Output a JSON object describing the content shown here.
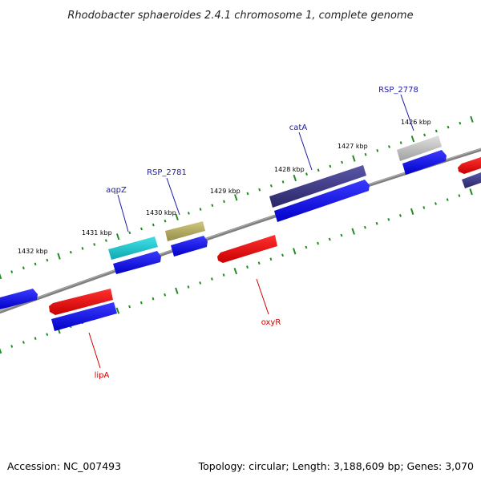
{
  "title": "Rhodobacter sphaeroides 2.4.1 chromosome 1, complete genome",
  "footer": {
    "accession": "Accession: NC_007493",
    "topology": "Topology: circular; Length: 3,188,609 bp; Genes: 3,070"
  },
  "scale_labels": [
    "1432 kbp",
    "1431 kbp",
    "1430 kbp",
    "1429 kbp",
    "1428 kbp",
    "1427 kbp",
    "1426 kbp"
  ],
  "gene_labels": {
    "aqpZ": "aqpZ",
    "RSP_2781": "RSP_2781",
    "catA": "catA",
    "RSP_2778": "RSP_2778",
    "oxyR": "oxyR",
    "lipA": "lipA"
  },
  "colors": {
    "backbone": "#808080",
    "forward_tick": "#228B22",
    "cds": "#0000ee",
    "gene_red": "#ee0000",
    "aqpZ": "#20c0c8",
    "RSP_2781": "#b0a860",
    "catA": "#3a3680",
    "RSP_2778": "#b8b8b8",
    "label_blue": "#1a1aa8",
    "label_red": "#d00000"
  }
}
